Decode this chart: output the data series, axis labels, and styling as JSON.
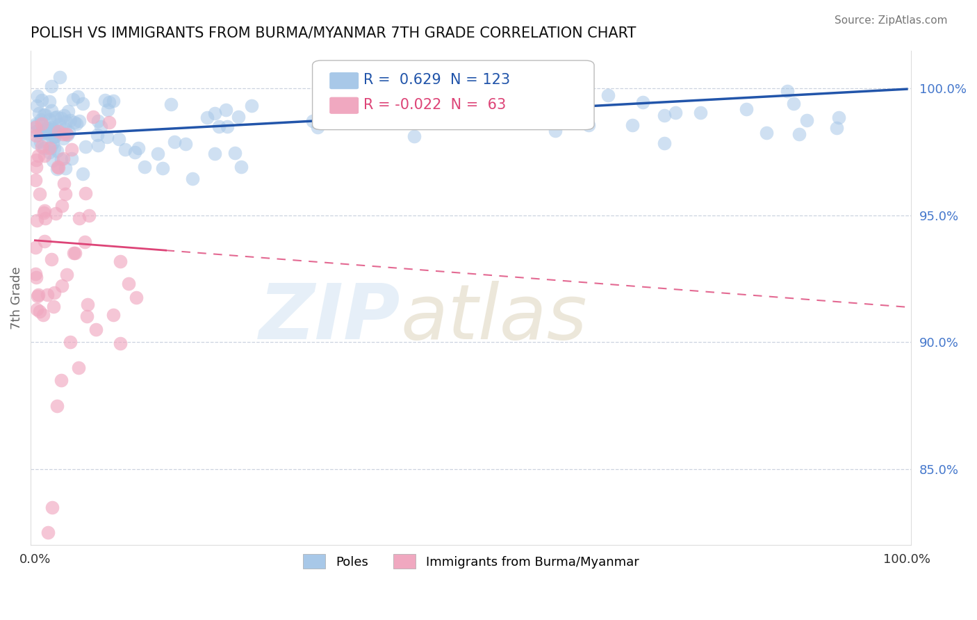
{
  "title": "POLISH VS IMMIGRANTS FROM BURMA/MYANMAR 7TH GRADE CORRELATION CHART",
  "source": "Source: ZipAtlas.com",
  "ylabel": "7th Grade",
  "right_yticks": [
    85.0,
    90.0,
    95.0,
    100.0
  ],
  "legend_entries": [
    "Poles",
    "Immigrants from Burma/Myanmar"
  ],
  "blue_color": "#a8c8e8",
  "pink_color": "#f0a8c0",
  "blue_line_color": "#2255aa",
  "pink_line_color": "#dd4477",
  "R_blue": 0.629,
  "N_blue": 123,
  "R_pink": -0.022,
  "N_pink": 63,
  "ylim_min": 82.0,
  "ylim_max": 101.5,
  "xlim_min": -0.005,
  "xlim_max": 1.005
}
